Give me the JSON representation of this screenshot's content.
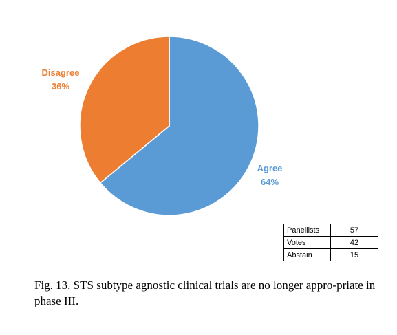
{
  "chart_data": {
    "type": "pie",
    "slices": [
      {
        "label": "Agree",
        "value": 64,
        "value_label": "64%",
        "color": "#5b9bd5"
      },
      {
        "label": "Disagree",
        "value": 36,
        "value_label": "36%",
        "color": "#ed7d31"
      }
    ],
    "start": "12 o'clock",
    "direction": "clockwise"
  },
  "table": {
    "rows": [
      {
        "label": "Panellists",
        "value": "57"
      },
      {
        "label": "Votes",
        "value": "42"
      },
      {
        "label": "Abstain",
        "value": "15"
      }
    ]
  },
  "caption": {
    "text": "Fig. 13. STS subtype agnostic clinical trials are no longer appro-priate in phase III."
  }
}
